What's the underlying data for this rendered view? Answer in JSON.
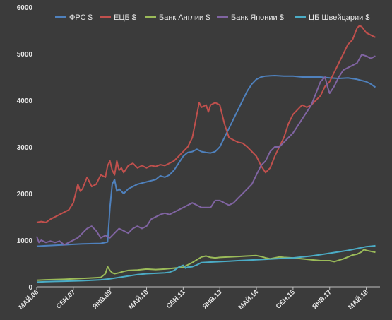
{
  "chart_data": {
    "type": "line",
    "title": "",
    "xlabel": "",
    "ylabel": "",
    "ylim": [
      0,
      6000
    ],
    "yticks": [
      0,
      1000,
      2000,
      3000,
      4000,
      5000,
      6000
    ],
    "grid": false,
    "legend_position": "top",
    "x_tick_labels": [
      {
        "t": 0,
        "label": "МАЙ.06"
      },
      {
        "t": 16,
        "label": "СЕН.07"
      },
      {
        "t": 32,
        "label": "ЯНВ.09"
      },
      {
        "t": 48,
        "label": "МАЙ.10"
      },
      {
        "t": 64,
        "label": "СЕН.11"
      },
      {
        "t": 80,
        "label": "ЯНВ.13"
      },
      {
        "t": 96,
        "label": "МАЙ.14"
      },
      {
        "t": 112,
        "label": "СЕН.15"
      },
      {
        "t": 128,
        "label": "ЯНВ.17"
      },
      {
        "t": 144,
        "label": "МАЙ.18"
      }
    ],
    "x_range": [
      0,
      150
    ],
    "series": [
      {
        "name": "ФРС  $",
        "color": "#4f81bd",
        "points": [
          [
            0,
            870
          ],
          [
            4,
            880
          ],
          [
            8,
            890
          ],
          [
            12,
            900
          ],
          [
            16,
            910
          ],
          [
            20,
            920
          ],
          [
            24,
            925
          ],
          [
            28,
            930
          ],
          [
            31,
            960
          ],
          [
            32,
            1700
          ],
          [
            33,
            2200
          ],
          [
            34,
            2300
          ],
          [
            35,
            2050
          ],
          [
            36,
            2100
          ],
          [
            38,
            2000
          ],
          [
            40,
            2100
          ],
          [
            44,
            2200
          ],
          [
            48,
            2250
          ],
          [
            52,
            2300
          ],
          [
            54,
            2380
          ],
          [
            56,
            2350
          ],
          [
            58,
            2400
          ],
          [
            60,
            2500
          ],
          [
            62,
            2650
          ],
          [
            64,
            2800
          ],
          [
            66,
            2880
          ],
          [
            68,
            2900
          ],
          [
            70,
            2950
          ],
          [
            72,
            2900
          ],
          [
            74,
            2880
          ],
          [
            76,
            2870
          ],
          [
            78,
            2900
          ],
          [
            80,
            3000
          ],
          [
            82,
            3200
          ],
          [
            84,
            3400
          ],
          [
            86,
            3600
          ],
          [
            88,
            3800
          ],
          [
            90,
            4000
          ],
          [
            92,
            4200
          ],
          [
            94,
            4350
          ],
          [
            96,
            4450
          ],
          [
            98,
            4500
          ],
          [
            100,
            4520
          ],
          [
            104,
            4530
          ],
          [
            108,
            4520
          ],
          [
            112,
            4520
          ],
          [
            116,
            4500
          ],
          [
            120,
            4500
          ],
          [
            124,
            4500
          ],
          [
            128,
            4480
          ],
          [
            132,
            4470
          ],
          [
            136,
            4480
          ],
          [
            140,
            4450
          ],
          [
            144,
            4400
          ],
          [
            146,
            4350
          ],
          [
            148,
            4280
          ]
        ]
      },
      {
        "name": "ЕЦБ $",
        "color": "#c0504d",
        "points": [
          [
            0,
            1380
          ],
          [
            2,
            1400
          ],
          [
            4,
            1380
          ],
          [
            6,
            1450
          ],
          [
            8,
            1500
          ],
          [
            10,
            1550
          ],
          [
            12,
            1600
          ],
          [
            14,
            1650
          ],
          [
            16,
            1800
          ],
          [
            18,
            2200
          ],
          [
            19,
            2050
          ],
          [
            20,
            2100
          ],
          [
            22,
            2350
          ],
          [
            24,
            2150
          ],
          [
            26,
            2200
          ],
          [
            28,
            2400
          ],
          [
            30,
            2350
          ],
          [
            31,
            2600
          ],
          [
            32,
            2700
          ],
          [
            33,
            2500
          ],
          [
            34,
            2400
          ],
          [
            35,
            2700
          ],
          [
            36,
            2500
          ],
          [
            37,
            2550
          ],
          [
            38,
            2450
          ],
          [
            40,
            2600
          ],
          [
            42,
            2650
          ],
          [
            44,
            2550
          ],
          [
            46,
            2600
          ],
          [
            48,
            2550
          ],
          [
            50,
            2600
          ],
          [
            52,
            2580
          ],
          [
            54,
            2620
          ],
          [
            56,
            2600
          ],
          [
            58,
            2650
          ],
          [
            60,
            2700
          ],
          [
            62,
            2800
          ],
          [
            64,
            2900
          ],
          [
            66,
            3000
          ],
          [
            68,
            3200
          ],
          [
            70,
            3700
          ],
          [
            71,
            3950
          ],
          [
            72,
            3850
          ],
          [
            74,
            3900
          ],
          [
            75,
            3750
          ],
          [
            76,
            3900
          ],
          [
            78,
            3950
          ],
          [
            80,
            3900
          ],
          [
            82,
            3500
          ],
          [
            84,
            3200
          ],
          [
            86,
            3150
          ],
          [
            88,
            3100
          ],
          [
            90,
            3080
          ],
          [
            92,
            3000
          ],
          [
            94,
            2900
          ],
          [
            96,
            2800
          ],
          [
            98,
            2600
          ],
          [
            100,
            2450
          ],
          [
            102,
            2550
          ],
          [
            104,
            2800
          ],
          [
            106,
            3000
          ],
          [
            108,
            3200
          ],
          [
            110,
            3500
          ],
          [
            112,
            3700
          ],
          [
            114,
            3800
          ],
          [
            116,
            3900
          ],
          [
            118,
            3850
          ],
          [
            120,
            3900
          ],
          [
            122,
            4000
          ],
          [
            124,
            4100
          ],
          [
            126,
            4300
          ],
          [
            128,
            4400
          ],
          [
            130,
            4600
          ],
          [
            132,
            4800
          ],
          [
            134,
            5000
          ],
          [
            136,
            5200
          ],
          [
            138,
            5300
          ],
          [
            140,
            5550
          ],
          [
            141,
            5600
          ],
          [
            142,
            5580
          ],
          [
            144,
            5450
          ],
          [
            146,
            5400
          ],
          [
            148,
            5350
          ]
        ]
      },
      {
        "name": "Банк Англии $",
        "color": "#9bbb59",
        "points": [
          [
            0,
            140
          ],
          [
            4,
            150
          ],
          [
            8,
            155
          ],
          [
            12,
            160
          ],
          [
            16,
            170
          ],
          [
            20,
            180
          ],
          [
            24,
            190
          ],
          [
            28,
            200
          ],
          [
            30,
            280
          ],
          [
            31,
            430
          ],
          [
            32,
            350
          ],
          [
            33,
            300
          ],
          [
            34,
            280
          ],
          [
            36,
            300
          ],
          [
            38,
            330
          ],
          [
            40,
            350
          ],
          [
            44,
            360
          ],
          [
            48,
            380
          ],
          [
            52,
            370
          ],
          [
            56,
            380
          ],
          [
            60,
            400
          ],
          [
            64,
            420
          ],
          [
            66,
            470
          ],
          [
            68,
            520
          ],
          [
            70,
            580
          ],
          [
            72,
            640
          ],
          [
            74,
            660
          ],
          [
            76,
            630
          ],
          [
            78,
            620
          ],
          [
            80,
            630
          ],
          [
            84,
            640
          ],
          [
            88,
            650
          ],
          [
            92,
            660
          ],
          [
            96,
            670
          ],
          [
            98,
            650
          ],
          [
            100,
            620
          ],
          [
            102,
            600
          ],
          [
            104,
            620
          ],
          [
            106,
            640
          ],
          [
            108,
            630
          ],
          [
            112,
            620
          ],
          [
            116,
            600
          ],
          [
            120,
            580
          ],
          [
            124,
            560
          ],
          [
            128,
            560
          ],
          [
            130,
            540
          ],
          [
            132,
            570
          ],
          [
            134,
            600
          ],
          [
            136,
            640
          ],
          [
            138,
            680
          ],
          [
            140,
            700
          ],
          [
            142,
            750
          ],
          [
            143,
            800
          ],
          [
            144,
            780
          ],
          [
            146,
            760
          ],
          [
            148,
            740
          ]
        ]
      },
      {
        "name": "Банк Японии $",
        "color": "#8064a2",
        "points": [
          [
            0,
            1080
          ],
          [
            1,
            950
          ],
          [
            2,
            1000
          ],
          [
            4,
            950
          ],
          [
            6,
            980
          ],
          [
            8,
            950
          ],
          [
            10,
            980
          ],
          [
            12,
            900
          ],
          [
            14,
            950
          ],
          [
            16,
            1000
          ],
          [
            18,
            1050
          ],
          [
            20,
            1150
          ],
          [
            22,
            1250
          ],
          [
            24,
            1300
          ],
          [
            26,
            1200
          ],
          [
            28,
            1050
          ],
          [
            30,
            1100
          ],
          [
            32,
            1050
          ],
          [
            34,
            1150
          ],
          [
            36,
            1250
          ],
          [
            38,
            1200
          ],
          [
            40,
            1150
          ],
          [
            42,
            1250
          ],
          [
            44,
            1300
          ],
          [
            46,
            1250
          ],
          [
            48,
            1300
          ],
          [
            50,
            1450
          ],
          [
            52,
            1500
          ],
          [
            54,
            1550
          ],
          [
            56,
            1580
          ],
          [
            58,
            1550
          ],
          [
            60,
            1600
          ],
          [
            62,
            1650
          ],
          [
            64,
            1700
          ],
          [
            66,
            1750
          ],
          [
            68,
            1800
          ],
          [
            70,
            1750
          ],
          [
            72,
            1700
          ],
          [
            74,
            1700
          ],
          [
            76,
            1700
          ],
          [
            78,
            1850
          ],
          [
            80,
            1850
          ],
          [
            82,
            1800
          ],
          [
            84,
            1750
          ],
          [
            86,
            1800
          ],
          [
            88,
            1900
          ],
          [
            90,
            2000
          ],
          [
            92,
            2100
          ],
          [
            94,
            2200
          ],
          [
            96,
            2400
          ],
          [
            98,
            2600
          ],
          [
            100,
            2700
          ],
          [
            102,
            2900
          ],
          [
            104,
            3000
          ],
          [
            106,
            3000
          ],
          [
            108,
            3100
          ],
          [
            110,
            3200
          ],
          [
            112,
            3300
          ],
          [
            114,
            3450
          ],
          [
            116,
            3600
          ],
          [
            118,
            3750
          ],
          [
            120,
            3900
          ],
          [
            122,
            4150
          ],
          [
            124,
            4400
          ],
          [
            126,
            4500
          ],
          [
            127,
            4300
          ],
          [
            128,
            4150
          ],
          [
            130,
            4300
          ],
          [
            132,
            4500
          ],
          [
            134,
            4650
          ],
          [
            136,
            4700
          ],
          [
            138,
            4750
          ],
          [
            140,
            4800
          ],
          [
            142,
            4980
          ],
          [
            144,
            4950
          ],
          [
            146,
            4900
          ],
          [
            148,
            4950
          ]
        ]
      },
      {
        "name": "ЦБ Швейцарии $",
        "color": "#4bacc6",
        "points": [
          [
            0,
            100
          ],
          [
            4,
            110
          ],
          [
            8,
            115
          ],
          [
            12,
            120
          ],
          [
            16,
            125
          ],
          [
            20,
            130
          ],
          [
            24,
            140
          ],
          [
            28,
            150
          ],
          [
            32,
            170
          ],
          [
            36,
            200
          ],
          [
            40,
            230
          ],
          [
            44,
            260
          ],
          [
            48,
            280
          ],
          [
            52,
            290
          ],
          [
            56,
            300
          ],
          [
            58,
            310
          ],
          [
            60,
            350
          ],
          [
            62,
            420
          ],
          [
            64,
            460
          ],
          [
            65,
            400
          ],
          [
            66,
            420
          ],
          [
            68,
            430
          ],
          [
            70,
            470
          ],
          [
            72,
            520
          ],
          [
            76,
            530
          ],
          [
            80,
            540
          ],
          [
            84,
            550
          ],
          [
            88,
            560
          ],
          [
            92,
            570
          ],
          [
            96,
            580
          ],
          [
            100,
            590
          ],
          [
            104,
            600
          ],
          [
            108,
            610
          ],
          [
            112,
            620
          ],
          [
            116,
            640
          ],
          [
            120,
            660
          ],
          [
            124,
            690
          ],
          [
            128,
            720
          ],
          [
            132,
            750
          ],
          [
            136,
            780
          ],
          [
            140,
            820
          ],
          [
            144,
            860
          ],
          [
            146,
            870
          ],
          [
            148,
            880
          ]
        ]
      }
    ]
  }
}
